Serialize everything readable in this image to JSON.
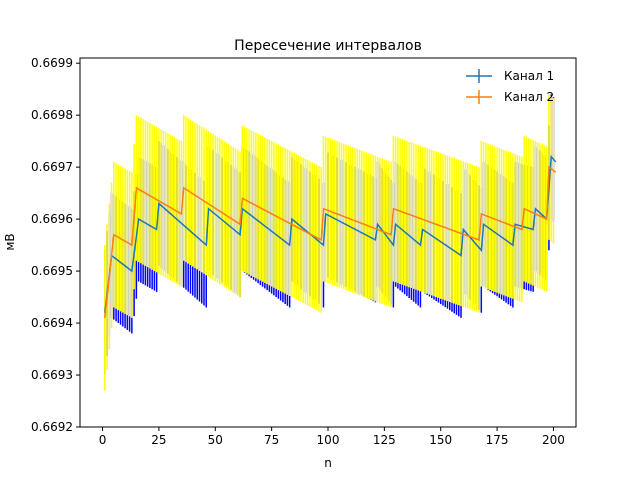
{
  "chart_data": {
    "type": "line",
    "title": "Пересечение интервалов",
    "xlabel": "n",
    "ylabel": "мВ",
    "xlim": [
      -10,
      210
    ],
    "ylim": [
      0.6692,
      0.66991
    ],
    "x_ticks": [
      0,
      25,
      50,
      75,
      100,
      125,
      150,
      175,
      200
    ],
    "x_tick_labels": [
      "0",
      "25",
      "50",
      "75",
      "100",
      "125",
      "150",
      "175",
      "200"
    ],
    "y_ticks": [
      0.6692,
      0.6693,
      0.6694,
      0.6695,
      0.6696,
      0.6697,
      0.6698,
      0.6699
    ],
    "y_tick_labels": [
      "0.6692",
      "0.6693",
      "0.6694",
      "0.6695",
      "0.6696",
      "0.6697",
      "0.6698",
      "0.6699"
    ],
    "legend_position": "top-right",
    "series": [
      {
        "name": "Канал 1",
        "line_color": "#1f77b4",
        "errorbar_color": "#0000ff",
        "halfwidth": 0.00012,
        "points": [
          [
            1,
            0.66942
          ],
          [
            4,
            0.66953
          ],
          [
            13,
            0.6695
          ],
          [
            16,
            0.6696
          ],
          [
            24,
            0.66958
          ],
          [
            25,
            0.66963
          ],
          [
            46,
            0.66955
          ],
          [
            47,
            0.66962
          ],
          [
            61,
            0.66957
          ],
          [
            62,
            0.66962
          ],
          [
            83,
            0.66955
          ],
          [
            84,
            0.6696
          ],
          [
            98,
            0.66955
          ],
          [
            99,
            0.66961
          ],
          [
            121,
            0.66956
          ],
          [
            122,
            0.66959
          ],
          [
            129,
            0.66955
          ],
          [
            130,
            0.66959
          ],
          [
            141,
            0.66955
          ],
          [
            142,
            0.66958
          ],
          [
            159,
            0.66953
          ],
          [
            160,
            0.66958
          ],
          [
            168,
            0.66954
          ],
          [
            169,
            0.66959
          ],
          [
            182,
            0.66955
          ],
          [
            183,
            0.66959
          ],
          [
            191,
            0.66958
          ],
          [
            192,
            0.66962
          ],
          [
            197,
            0.6696
          ],
          [
            199,
            0.66972
          ],
          [
            201,
            0.66971
          ]
        ]
      },
      {
        "name": "Канал 2",
        "line_color": "#ff7f0e",
        "errorbar_color": "#ffff00",
        "halfwidth": 0.00014,
        "points": [
          [
            1,
            0.66941
          ],
          [
            5,
            0.66957
          ],
          [
            13,
            0.66955
          ],
          [
            15,
            0.66966
          ],
          [
            35,
            0.66961
          ],
          [
            36,
            0.66966
          ],
          [
            61,
            0.66959
          ],
          [
            62,
            0.66964
          ],
          [
            97,
            0.66956
          ],
          [
            98,
            0.66962
          ],
          [
            128,
            0.66957
          ],
          [
            129,
            0.66962
          ],
          [
            167,
            0.66956
          ],
          [
            168,
            0.66961
          ],
          [
            186,
            0.66958
          ],
          [
            187,
            0.66962
          ],
          [
            197,
            0.6696
          ],
          [
            198,
            0.6697
          ],
          [
            201,
            0.66969
          ]
        ]
      }
    ]
  }
}
